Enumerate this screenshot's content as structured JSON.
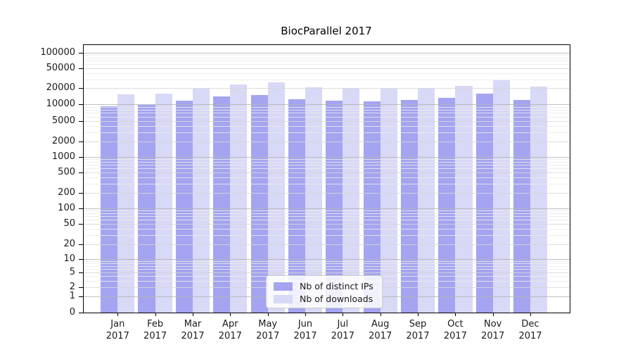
{
  "title": "BiocParallel 2017",
  "colors": {
    "ips_bar": "#a4a4f0",
    "downloads_bar": "#d8d8f7",
    "grid_major": "#b5b5b5",
    "grid_mid": "#d7d7d7",
    "grid_minor": "#ebebeb",
    "axis": "#000000",
    "text": "#1a1a1a",
    "legend_border": "#cccccc",
    "background": "#ffffff"
  },
  "chart_data": {
    "type": "bar",
    "title": "BiocParallel 2017",
    "year_label": "2017",
    "categories": [
      "Jan",
      "Feb",
      "Mar",
      "Apr",
      "May",
      "Jun",
      "Jul",
      "Aug",
      "Sep",
      "Oct",
      "Nov",
      "Dec"
    ],
    "series": [
      {
        "name": "Nb of distinct IPs",
        "color": "#a4a4f0",
        "values": [
          9300,
          9900,
          11600,
          14300,
          15100,
          12400,
          11800,
          11400,
          12100,
          13200,
          16000,
          12200
        ]
      },
      {
        "name": "Nb of downloads",
        "color": "#d8d8f7",
        "values": [
          15500,
          16100,
          19400,
          24000,
          25800,
          21000,
          20400,
          19900,
          20100,
          22500,
          28600,
          21500
        ]
      }
    ],
    "y_ticks": [
      0,
      1,
      2,
      5,
      10,
      20,
      50,
      100,
      200,
      500,
      1000,
      2000,
      5000,
      10000,
      20000,
      50000,
      100000
    ],
    "y_scale": "log",
    "ylim": [
      0,
      146000
    ],
    "grid": true,
    "legend_position": "bottom-center"
  }
}
